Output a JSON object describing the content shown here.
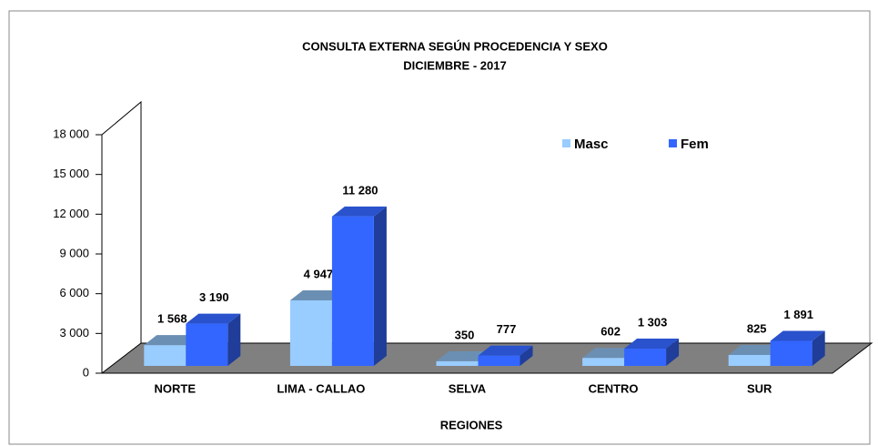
{
  "chart_data": {
    "type": "bar3d",
    "title": "CONSULTA  EXTERNA  SEGÚN  PROCEDENCIA  Y SEXO",
    "subtitle": "DICIEMBRE  -  2017",
    "x_label": "REGIONES",
    "categories": [
      "NORTE",
      "LIMA - CALLAO",
      "SELVA",
      "CENTRO",
      "SUR"
    ],
    "series": [
      {
        "name": "Masc",
        "color": "#99ccff",
        "values": [
          1568,
          4947,
          350,
          602,
          825
        ],
        "value_labels": [
          "1 568",
          "4 947",
          "350",
          "602",
          "825"
        ]
      },
      {
        "name": "Fem",
        "color": "#3366ff",
        "values": [
          3190,
          11280,
          777,
          1303,
          1891
        ],
        "value_labels": [
          "3 190",
          "11 280",
          "777",
          "1 303",
          "1 891"
        ]
      }
    ],
    "ylim": [
      0,
      18000
    ],
    "yticks": [
      0,
      {
        "value": 3000,
        "label": "3 000"
      },
      {
        "value": 6000,
        "label": "6 000"
      },
      {
        "value": 9000,
        "label": "9 000"
      },
      {
        "value": 12000,
        "label": "12 000"
      },
      {
        "value": 15000,
        "label": "15 000"
      },
      {
        "value": 18000,
        "label": "18 000"
      }
    ],
    "legend": "top-right"
  }
}
